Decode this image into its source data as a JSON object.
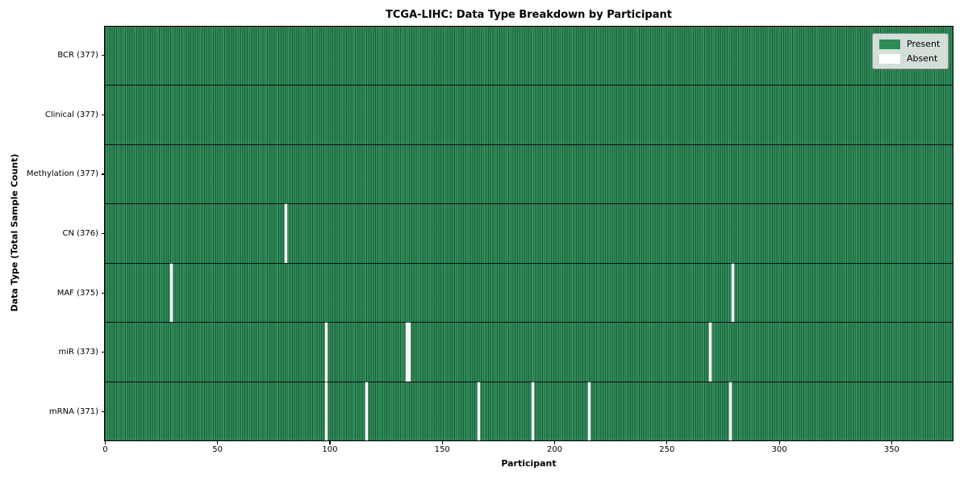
{
  "chart_data": {
    "type": "heatmap",
    "title": "TCGA-LIHC: Data Type Breakdown by Participant",
    "xlabel": "Participant",
    "ylabel": "Data Type (Total Sample Count)",
    "x_ticks": [
      0,
      50,
      100,
      150,
      200,
      250,
      300,
      350
    ],
    "x_range": [
      0,
      377
    ],
    "n_participants": 377,
    "grid": false,
    "legend_position": "upper right",
    "legend": [
      {
        "label": "Present",
        "color": "#2e8b57"
      },
      {
        "label": "Absent",
        "color": "#ffffff"
      }
    ],
    "colors": {
      "present_fill": "#2e8b57",
      "present_edge": "#1c5a38",
      "absent_fill": "#fcfcfc",
      "row_separator": "#0e0e0e"
    },
    "rows": [
      {
        "data_type": "BCR",
        "label": "BCR (377)",
        "total": 377,
        "absent_participants": []
      },
      {
        "data_type": "Clinical",
        "label": "Clinical (377)",
        "total": 377,
        "absent_participants": []
      },
      {
        "data_type": "Methylation",
        "label": "Methylation (377)",
        "total": 377,
        "absent_participants": []
      },
      {
        "data_type": "CN",
        "label": "CN (376)",
        "total": 376,
        "absent_participants": [
          80
        ]
      },
      {
        "data_type": "MAF",
        "label": "MAF (375)",
        "total": 375,
        "absent_participants": [
          29,
          279
        ]
      },
      {
        "data_type": "miR",
        "label": "miR (373)",
        "total": 373,
        "absent_participants": [
          98,
          134,
          135,
          269
        ]
      },
      {
        "data_type": "mRNA",
        "label": "mRNA (371)",
        "total": 371,
        "absent_participants": [
          98,
          116,
          166,
          190,
          215,
          278
        ]
      }
    ]
  }
}
